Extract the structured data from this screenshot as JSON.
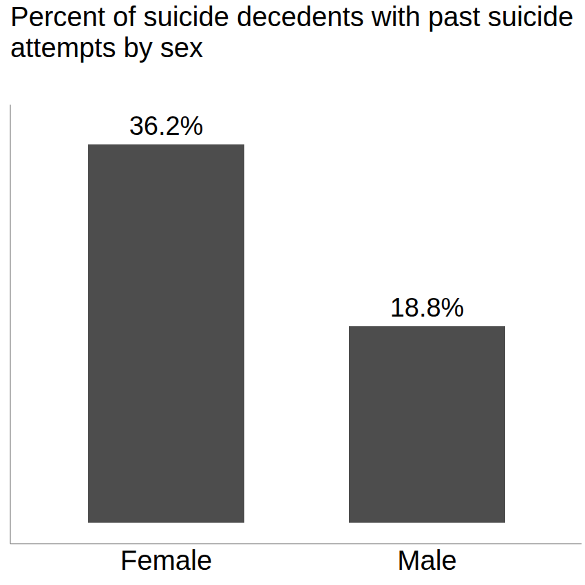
{
  "chart_data": {
    "type": "bar",
    "title": "Percent of suicide decedents with past suicide attempts by sex",
    "categories": [
      "Female",
      "Male"
    ],
    "values": [
      36.2,
      18.8
    ],
    "value_labels": [
      "36.2%",
      "18.8%"
    ],
    "color": "#4d4d4d",
    "ylim": [
      -2,
      40
    ],
    "grid": false,
    "data_labels": true,
    "tick_labels": "x"
  }
}
